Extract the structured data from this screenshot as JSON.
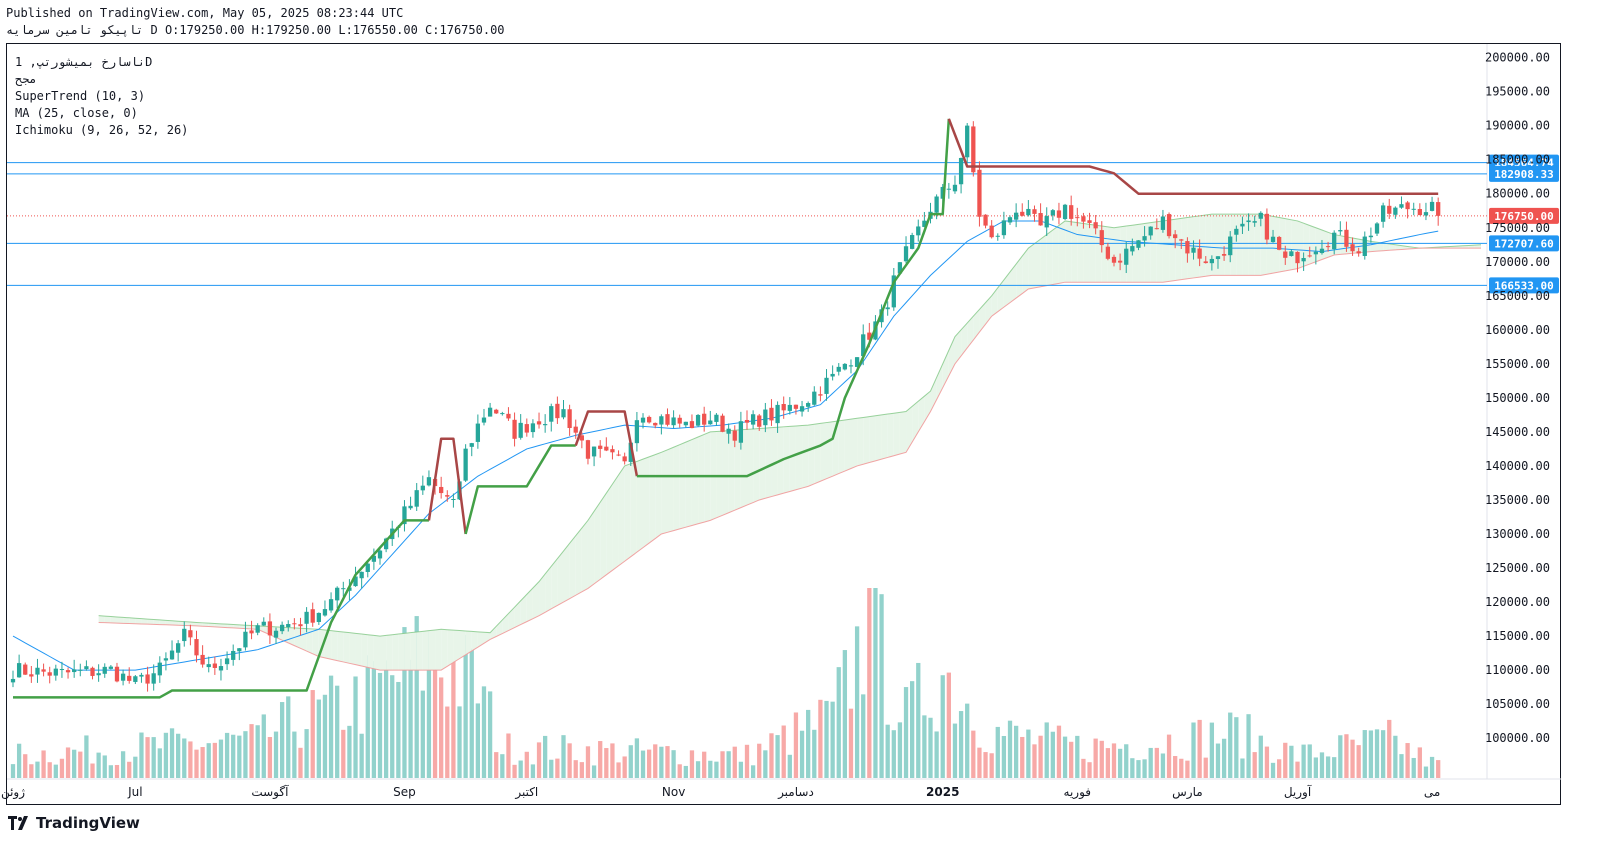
{
  "header": {
    "published": "Published on TradingView.com, May 05, 2025 08:23:44 UTC",
    "ohlc": "تاپیکو تامین سرمایه D O:179250.00 H:179250.00 L:176550.00 C:176750.00"
  },
  "legend": {
    "symbol": "ناسارخ بمیشورتپ, 1D",
    "exchange": "مجح",
    "supertrend": "SuperTrend (10, 3)",
    "ma": "MA (25, close, 0)",
    "ichimoku": "Ichimoku (9, 26, 52, 26)"
  },
  "brand": {
    "name": "TradingView"
  },
  "colors": {
    "up": "#26a69a",
    "down": "#ef5350",
    "st_up": "#43a047",
    "st_down": "#a84646",
    "ma": "#2196f3",
    "hline": "#2196f3",
    "cloud_green": "#e8f5e9",
    "cloud_red": "#fde4e4",
    "last_price": "#ef5350"
  },
  "chart_data": {
    "type": "candlestick",
    "interval": "1D",
    "ylim": [
      94000,
      202000
    ],
    "y_ticks": [
      "200000.00",
      "195000.00",
      "190000.00",
      "185000.00",
      "180000.00",
      "175000.00",
      "170000.00",
      "165000.00",
      "160000.00",
      "155000.00",
      "150000.00",
      "145000.00",
      "140000.00",
      "135000.00",
      "130000.00",
      "125000.00",
      "120000.00",
      "115000.00",
      "110000.00",
      "105000.00",
      "100000.00"
    ],
    "x_labels": [
      {
        "label": "ژوئن",
        "day": 0
      },
      {
        "label": "Jul",
        "day": 20
      },
      {
        "label": "آگوست",
        "day": 42
      },
      {
        "label": "Sep",
        "day": 64
      },
      {
        "label": "اکتبر",
        "day": 84
      },
      {
        "label": "Nov",
        "day": 108
      },
      {
        "label": "دسامبر",
        "day": 128
      },
      {
        "label": "2025",
        "day": 152
      },
      {
        "label": "فوریه",
        "day": 174
      },
      {
        "label": "مارس",
        "day": 192
      },
      {
        "label": "آوریل",
        "day": 210
      },
      {
        "label": "می",
        "day": 232
      }
    ],
    "horizontal_lines": [
      184564.74,
      182908.33,
      172707.6,
      166533.0
    ],
    "horizontal_line_labels": [
      "184564.74",
      "182908.33",
      "172707.60",
      "166533.00"
    ],
    "last_price": 176750.0,
    "last_price_label": "176750.00",
    "close_keypoints": [
      [
        0,
        110000
      ],
      [
        8,
        109500
      ],
      [
        16,
        110000
      ],
      [
        20,
        108000
      ],
      [
        24,
        110000
      ],
      [
        28,
        115000
      ],
      [
        32,
        110000
      ],
      [
        36,
        113000
      ],
      [
        40,
        116000
      ],
      [
        44,
        116500
      ],
      [
        48,
        117500
      ],
      [
        52,
        120000
      ],
      [
        56,
        124000
      ],
      [
        60,
        128000
      ],
      [
        64,
        133000
      ],
      [
        68,
        138000
      ],
      [
        72,
        134000
      ],
      [
        74,
        142000
      ],
      [
        76,
        146000
      ],
      [
        78,
        149000
      ],
      [
        82,
        145000
      ],
      [
        86,
        147000
      ],
      [
        90,
        148000
      ],
      [
        94,
        142000
      ],
      [
        98,
        141000
      ],
      [
        100,
        140000
      ],
      [
        102,
        148000
      ],
      [
        106,
        147000
      ],
      [
        110,
        146000
      ],
      [
        114,
        147000
      ],
      [
        118,
        145000
      ],
      [
        122,
        147000
      ],
      [
        126,
        148000
      ],
      [
        130,
        150000
      ],
      [
        134,
        153000
      ],
      [
        138,
        157000
      ],
      [
        142,
        162000
      ],
      [
        144,
        167000
      ],
      [
        146,
        171000
      ],
      [
        150,
        178000
      ],
      [
        154,
        182000
      ],
      [
        156,
        189000
      ],
      [
        158,
        177000
      ],
      [
        160,
        173000
      ],
      [
        164,
        178000
      ],
      [
        168,
        175000
      ],
      [
        172,
        178000
      ],
      [
        176,
        175000
      ],
      [
        180,
        170000
      ],
      [
        184,
        173000
      ],
      [
        188,
        176000
      ],
      [
        192,
        172000
      ],
      [
        196,
        170000
      ],
      [
        200,
        174000
      ],
      [
        204,
        176000
      ],
      [
        208,
        170000
      ],
      [
        212,
        172000
      ],
      [
        216,
        174000
      ],
      [
        220,
        172000
      ],
      [
        224,
        177000
      ],
      [
        228,
        178000
      ],
      [
        232,
        178000
      ],
      [
        233,
        176750
      ]
    ],
    "volume_keypoints": [
      [
        0,
        0.15
      ],
      [
        40,
        0.25
      ],
      [
        45,
        0.35
      ],
      [
        56,
        0.5
      ],
      [
        68,
        0.8
      ],
      [
        76,
        0.6
      ],
      [
        80,
        0.2
      ],
      [
        120,
        0.15
      ],
      [
        134,
        0.4
      ],
      [
        140,
        1.0
      ],
      [
        146,
        0.4
      ],
      [
        152,
        0.7
      ],
      [
        160,
        0.3
      ],
      [
        175,
        0.2
      ],
      [
        190,
        0.25
      ],
      [
        200,
        0.3
      ],
      [
        210,
        0.15
      ],
      [
        225,
        0.25
      ],
      [
        232,
        0.1
      ]
    ],
    "volume_ylim_max": 123000,
    "supertrend_keypoints": [
      [
        0,
        106000
      ],
      [
        24,
        106000
      ],
      [
        26,
        107000
      ],
      [
        48,
        107000
      ],
      [
        52,
        117000
      ],
      [
        56,
        124000
      ],
      [
        60,
        128000
      ],
      [
        64,
        132000
      ],
      [
        68,
        132000
      ],
      [
        70,
        144000
      ],
      [
        72,
        144000
      ],
      [
        74,
        130000
      ],
      [
        76,
        137000
      ],
      [
        84,
        137000
      ],
      [
        88,
        143000
      ],
      [
        92,
        143000
      ],
      [
        94,
        148000
      ],
      [
        100,
        148000
      ],
      [
        102,
        138500
      ],
      [
        120,
        138500
      ],
      [
        126,
        141000
      ],
      [
        132,
        143000
      ],
      [
        134,
        144000
      ],
      [
        136,
        150000
      ],
      [
        140,
        158000
      ],
      [
        144,
        167000
      ],
      [
        148,
        172000
      ],
      [
        150,
        177000
      ],
      [
        152,
        177000
      ],
      [
        153,
        191000
      ],
      [
        156,
        184000
      ],
      [
        160,
        184000
      ],
      [
        176,
        184000
      ],
      [
        180,
        183000
      ],
      [
        184,
        180000
      ],
      [
        233,
        180000
      ]
    ],
    "supertrend_up_ranges": [
      [
        0,
        67
      ],
      [
        74,
        91
      ],
      [
        102,
        152
      ]
    ],
    "ma_keypoints": [
      [
        0,
        115000
      ],
      [
        10,
        110000
      ],
      [
        20,
        110000
      ],
      [
        30,
        111500
      ],
      [
        40,
        113000
      ],
      [
        50,
        116000
      ],
      [
        56,
        121000
      ],
      [
        62,
        127000
      ],
      [
        68,
        133000
      ],
      [
        76,
        138500
      ],
      [
        84,
        142500
      ],
      [
        92,
        144500
      ],
      [
        100,
        146000
      ],
      [
        108,
        145500
      ],
      [
        116,
        146000
      ],
      [
        124,
        147000
      ],
      [
        132,
        149000
      ],
      [
        138,
        154000
      ],
      [
        144,
        162000
      ],
      [
        150,
        168000
      ],
      [
        156,
        173000
      ],
      [
        162,
        176000
      ],
      [
        168,
        176000
      ],
      [
        174,
        174000
      ],
      [
        182,
        173000
      ],
      [
        190,
        172500
      ],
      [
        198,
        172000
      ],
      [
        206,
        172000
      ],
      [
        214,
        171500
      ],
      [
        222,
        172500
      ],
      [
        230,
        174000
      ],
      [
        233,
        174500
      ]
    ],
    "cloud_a_keypoints": [
      [
        14,
        118000
      ],
      [
        30,
        117000
      ],
      [
        40,
        116500
      ],
      [
        50,
        116000
      ],
      [
        60,
        115000
      ],
      [
        70,
        116000
      ],
      [
        78,
        115500
      ],
      [
        86,
        123000
      ],
      [
        94,
        132000
      ],
      [
        100,
        140000
      ],
      [
        106,
        142000
      ],
      [
        114,
        145000
      ],
      [
        122,
        145500
      ],
      [
        130,
        146000
      ],
      [
        138,
        147000
      ],
      [
        146,
        148000
      ],
      [
        150,
        151000
      ],
      [
        154,
        159000
      ],
      [
        160,
        165000
      ],
      [
        166,
        172000
      ],
      [
        172,
        176000
      ],
      [
        180,
        175000
      ],
      [
        188,
        176000
      ],
      [
        196,
        177000
      ],
      [
        204,
        177000
      ],
      [
        210,
        176000
      ],
      [
        216,
        174000
      ],
      [
        222,
        173000
      ],
      [
        230,
        172000
      ],
      [
        240,
        172500
      ]
    ],
    "cloud_b_keypoints": [
      [
        14,
        117000
      ],
      [
        30,
        116500
      ],
      [
        40,
        116000
      ],
      [
        50,
        112000
      ],
      [
        60,
        110000
      ],
      [
        70,
        110000
      ],
      [
        78,
        114500
      ],
      [
        86,
        118000
      ],
      [
        94,
        122000
      ],
      [
        100,
        126000
      ],
      [
        106,
        130000
      ],
      [
        114,
        132000
      ],
      [
        122,
        135000
      ],
      [
        130,
        137000
      ],
      [
        138,
        140000
      ],
      [
        146,
        142000
      ],
      [
        150,
        148000
      ],
      [
        154,
        155000
      ],
      [
        160,
        162000
      ],
      [
        166,
        166000
      ],
      [
        172,
        167000
      ],
      [
        180,
        167000
      ],
      [
        188,
        167000
      ],
      [
        196,
        168000
      ],
      [
        204,
        168000
      ],
      [
        210,
        169000
      ],
      [
        216,
        171000
      ],
      [
        222,
        171500
      ],
      [
        230,
        172000
      ],
      [
        240,
        172000
      ]
    ]
  }
}
